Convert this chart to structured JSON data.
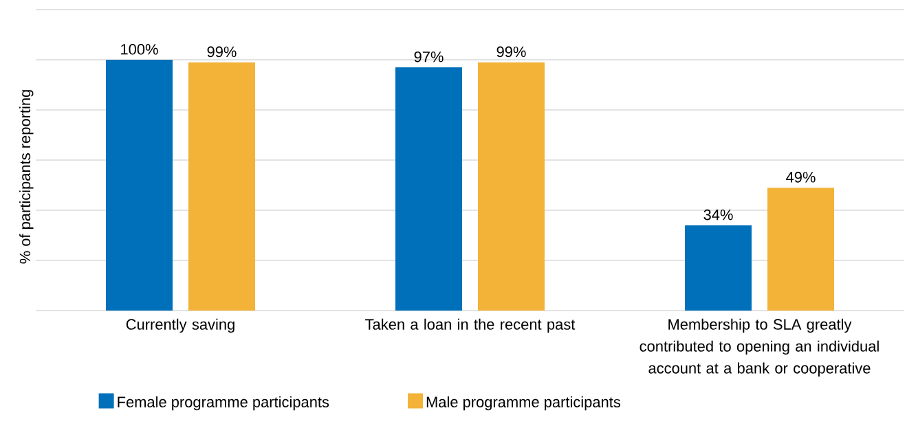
{
  "chart_data": {
    "type": "bar",
    "ylabel": "% of participants reporting",
    "categories": [
      "Currently saving",
      "Taken a loan in the recent past",
      "Membership to SLA greatly contributed to opening an individual account at a bank or cooperative"
    ],
    "series": [
      {
        "name": "Female programme participants",
        "color": "#0070bb",
        "values": [
          100,
          97,
          34
        ],
        "value_labels": [
          "100%",
          "97%",
          "34%"
        ]
      },
      {
        "name": "Male programme participants",
        "color": "#f2b338",
        "values": [
          99,
          99,
          49
        ],
        "value_labels": [
          "99%",
          "99%",
          "49%"
        ]
      }
    ],
    "ylim": [
      0,
      120
    ],
    "yticks": [
      {
        "value": 0,
        "label": null
      },
      {
        "value": 20,
        "label": null
      },
      {
        "value": 40,
        "label": null
      },
      {
        "value": 60,
        "label": null
      },
      {
        "value": 80,
        "label": null
      },
      {
        "value": 100,
        "label": null
      },
      {
        "value": 120,
        "label": null
      }
    ],
    "grid": "y",
    "legend": "bottom"
  }
}
